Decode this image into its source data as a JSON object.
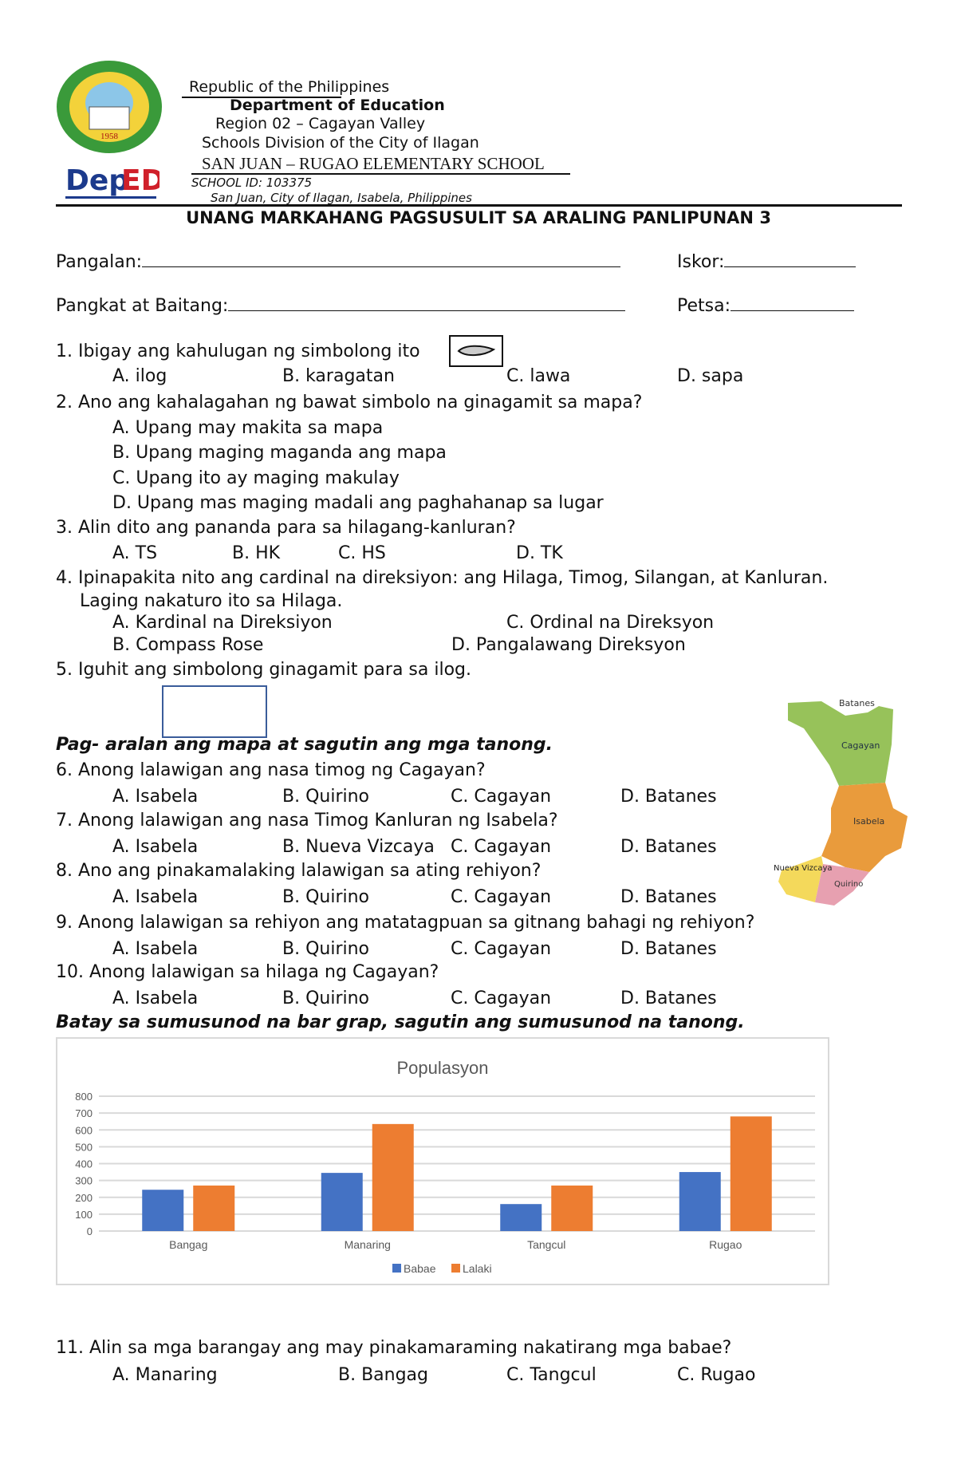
{
  "header": {
    "republic": "Republic of the Philippines",
    "department": "Department of Education",
    "region": "Region 02 – Cagayan Valley",
    "division": "Schools Division of the City of Ilagan",
    "school": "SAN JUAN – RUGAO ELEMENTARY SCHOOL",
    "school_id": "SCHOOL ID: 103375",
    "address": "San Juan, City of Ilagan, Isabela, Philippines",
    "seal_year": "1958",
    "logo_text": "DepED"
  },
  "title": "UNANG MARKAHANG PAGSUSULIT SA ARALING PANLIPUNAN 3",
  "fields": {
    "name": "Pangalan:",
    "score": "Iskor:",
    "section": "Pangkat at Baitang:",
    "date": "Petsa:"
  },
  "questions": [
    {
      "q": "1. Ibigay ang kahulugan ng simbolong ito",
      "options": [
        "A.  ilog",
        "B. karagatan",
        "C. lawa",
        "D. sapa"
      ]
    },
    {
      "q": "2. Ano ang kahalagahan ng bawat simbolo na ginagamit sa mapa?",
      "options": [
        "A. Upang may makita sa mapa",
        "B. Upang maging maganda ang mapa",
        "C. Upang ito ay maging makulay",
        "D. Upang mas maging madali ang paghahanap sa lugar"
      ]
    },
    {
      "q": "3. Alin dito ang pananda para sa hilagang-kanluran?",
      "options": [
        "A. TS",
        "B.  HK",
        "C. HS",
        "D. TK"
      ]
    },
    {
      "q": "4. Ipinapakita nito ang cardinal na direksiyon: ang Hilaga, Timog, Silangan, at Kanluran.",
      "q2": "Laging nakaturo ito sa Hilaga.",
      "options": [
        "A. Kardinal na Direksiyon",
        "C. Ordinal na Direksyon",
        "B. Compass Rose",
        "D. Pangalawang Direksyon"
      ]
    },
    {
      "q": "5. Iguhit ang simbolong ginagamit para sa ilog."
    }
  ],
  "map_instruction": "Pag- aralan ang mapa at sagutin ang mga tanong.",
  "map_labels": [
    "Batanes",
    "Cagayan",
    "Isabela",
    "Nueva Vizcaya",
    "Quirino"
  ],
  "map_questions": [
    {
      "q": "6. Anong lalawigan ang nasa timog ng Cagayan?",
      "options": [
        "A. Isabela",
        "B. Quirino",
        "C. Cagayan",
        "D. Batanes"
      ]
    },
    {
      "q": "7. Anong lalawigan ang nasa Timog Kanluran ng Isabela?",
      "options": [
        "A. Isabela",
        "B. Nueva Vizcaya",
        "C. Cagayan",
        "D. Batanes"
      ]
    },
    {
      "q": "8. Ano ang pinakamalaking lalawigan sa ating rehiyon?",
      "options": [
        "A. Isabela",
        "B. Quirino",
        "C. Cagayan",
        "D. Batanes"
      ]
    },
    {
      "q": "9. Anong lalawigan sa rehiyon ang matatagpuan sa gitnang bahagi ng rehiyon?",
      "options": [
        "A. Isabela",
        "B. Quirino",
        "C. Cagayan",
        "D. Batanes"
      ]
    },
    {
      "q": "10. Anong lalawigan sa hilaga ng Cagayan?",
      "options": [
        "A. Isabela",
        "B. Quirino",
        "C. Cagayan",
        "D. Batanes"
      ]
    }
  ],
  "chart_instruction": "Batay sa sumusunod na bar grap, sagutin ang sumusunod na tanong.",
  "chart_data": {
    "type": "bar",
    "title": "Populasyon",
    "categories": [
      "Bangag",
      "Manaring",
      "Tangcul",
      "Rugao"
    ],
    "series": [
      {
        "name": "Babae",
        "values": [
          245,
          345,
          160,
          350
        ],
        "color": "#4472C4"
      },
      {
        "name": "Lalaki",
        "values": [
          270,
          635,
          270,
          680
        ],
        "color": "#ED7D31"
      }
    ],
    "ylim": [
      0,
      800
    ],
    "yticks": [
      "0",
      "100",
      "200",
      "300",
      "400",
      "500",
      "600",
      "700",
      "800"
    ],
    "grid": true,
    "legend": "bottom"
  },
  "chart_questions": [
    {
      "q": "11. Alin sa mga barangay ang may pinakamaraming nakatirang mga babae?",
      "options": [
        "A. Manaring",
        "B. Bangag",
        "C. Tangcul",
        "C. Rugao"
      ]
    }
  ]
}
